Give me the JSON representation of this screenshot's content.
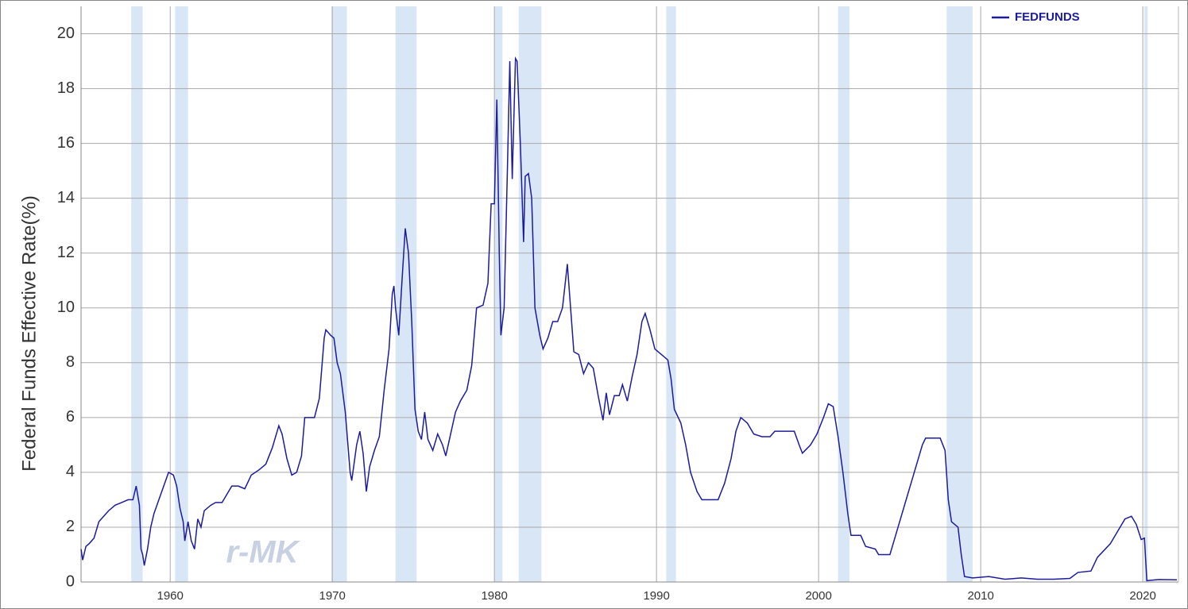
{
  "chart_data": {
    "type": "line",
    "y_label": "Federal Funds Effective Rate(%)",
    "watermark": "r-MK",
    "x": [
      1954.5,
      1954.6,
      1954.8,
      1955.0,
      1955.3,
      1955.6,
      1955.9,
      1956.2,
      1956.6,
      1957.0,
      1957.4,
      1957.7,
      1957.9,
      1958.1,
      1958.2,
      1958.3,
      1958.4,
      1958.6,
      1958.8,
      1959.0,
      1959.3,
      1959.6,
      1959.9,
      1960.2,
      1960.4,
      1960.6,
      1960.8,
      1960.9,
      1961.1,
      1961.3,
      1961.5,
      1961.7,
      1961.9,
      1962.1,
      1962.5,
      1962.8,
      1963.2,
      1963.5,
      1963.8,
      1964.2,
      1964.6,
      1965.0,
      1965.5,
      1965.9,
      1966.3,
      1966.7,
      1966.9,
      1967.2,
      1967.5,
      1967.8,
      1968.1,
      1968.3,
      1968.6,
      1968.9,
      1969.2,
      1969.5,
      1969.6,
      1969.9,
      1970.1,
      1970.3,
      1970.5,
      1970.8,
      1971.1,
      1971.2,
      1971.5,
      1971.7,
      1971.9,
      1972.1,
      1972.3,
      1972.6,
      1972.9,
      1973.2,
      1973.5,
      1973.7,
      1973.8,
      1973.9,
      1974.1,
      1974.3,
      1974.5,
      1974.7,
      1974.9,
      1975.1,
      1975.3,
      1975.5,
      1975.7,
      1975.9,
      1976.2,
      1976.5,
      1976.8,
      1977.0,
      1977.3,
      1977.6,
      1977.9,
      1978.3,
      1978.6,
      1978.9,
      1979.3,
      1979.6,
      1979.8,
      1980.0,
      1980.15,
      1980.3,
      1980.4,
      1980.6,
      1980.8,
      1980.95,
      1981.1,
      1981.3,
      1981.4,
      1981.6,
      1981.8,
      1981.9,
      1982.1,
      1982.3,
      1982.5,
      1982.8,
      1983.0,
      1983.3,
      1983.6,
      1983.9,
      1984.2,
      1984.5,
      1984.7,
      1984.9,
      1985.2,
      1985.5,
      1985.8,
      1986.1,
      1986.4,
      1986.7,
      1986.9,
      1987.1,
      1987.4,
      1987.7,
      1987.9,
      1988.2,
      1988.5,
      1988.8,
      1989.1,
      1989.3,
      1989.6,
      1989.9,
      1990.3,
      1990.7,
      1990.9,
      1991.1,
      1991.5,
      1991.8,
      1992.1,
      1992.5,
      1992.8,
      1993.3,
      1993.8,
      1994.2,
      1994.6,
      1994.9,
      1995.2,
      1995.6,
      1996.0,
      1996.5,
      1997.0,
      1997.3,
      1997.8,
      1998.5,
      1998.8,
      1999.0,
      1999.5,
      1999.9,
      2000.3,
      2000.6,
      2000.9,
      2001.2,
      2001.5,
      2001.8,
      2002.0,
      2002.6,
      2002.9,
      2003.5,
      2003.7,
      2004.4,
      2004.9,
      2005.5,
      2005.9,
      2006.4,
      2006.6,
      2007.5,
      2007.8,
      2008.0,
      2008.2,
      2008.6,
      2008.8,
      2009.0,
      2009.5,
      2010.5,
      2011.5,
      2012.5,
      2013.5,
      2014.5,
      2015.5,
      2016.0,
      2016.8,
      2017.2,
      2017.6,
      2018.0,
      2018.5,
      2018.9,
      2019.3,
      2019.6,
      2019.9,
      2020.1,
      2020.25,
      2021.0,
      2022.1
    ],
    "series": [
      {
        "name": "FEDFUNDS",
        "color": "#1c1c9c",
        "values": [
          1.2,
          0.8,
          1.3,
          1.4,
          1.6,
          2.2,
          2.4,
          2.6,
          2.8,
          2.9,
          3.0,
          3.0,
          3.5,
          2.8,
          1.2,
          1.0,
          0.6,
          1.2,
          2.0,
          2.5,
          3.0,
          3.5,
          4.0,
          3.9,
          3.5,
          2.7,
          2.2,
          1.5,
          2.2,
          1.5,
          1.2,
          2.3,
          2.0,
          2.6,
          2.8,
          2.9,
          2.9,
          3.2,
          3.5,
          3.5,
          3.4,
          3.9,
          4.1,
          4.3,
          4.9,
          5.7,
          5.4,
          4.5,
          3.9,
          4.0,
          4.6,
          6.0,
          6.0,
          6.0,
          6.7,
          8.9,
          9.2,
          9.0,
          8.9,
          8.0,
          7.6,
          6.2,
          4.0,
          3.7,
          5.0,
          5.5,
          4.7,
          3.3,
          4.2,
          4.8,
          5.3,
          7.0,
          8.5,
          10.5,
          10.8,
          10.0,
          9.0,
          11.0,
          12.9,
          12.0,
          9.5,
          6.3,
          5.5,
          5.2,
          6.2,
          5.2,
          4.8,
          5.4,
          5.0,
          4.6,
          5.4,
          6.2,
          6.6,
          7.0,
          7.9,
          10.0,
          10.1,
          10.9,
          13.8,
          13.8,
          17.6,
          12.0,
          9.0,
          10.0,
          15.0,
          19.0,
          14.7,
          19.1,
          19.0,
          16.0,
          12.4,
          14.8,
          14.9,
          14.0,
          10.0,
          9.0,
          8.5,
          8.9,
          9.5,
          9.5,
          10.0,
          11.6,
          10.0,
          8.4,
          8.3,
          7.6,
          8.0,
          7.8,
          6.8,
          5.9,
          6.9,
          6.1,
          6.8,
          6.8,
          7.2,
          6.6,
          7.5,
          8.3,
          9.5,
          9.8,
          9.2,
          8.5,
          8.3,
          8.1,
          7.4,
          6.3,
          5.8,
          5.0,
          4.0,
          3.3,
          3.0,
          3.0,
          3.0,
          3.6,
          4.5,
          5.5,
          6.0,
          5.8,
          5.4,
          5.3,
          5.3,
          5.5,
          5.5,
          5.5,
          5.0,
          4.7,
          5.0,
          5.4,
          6.0,
          6.5,
          6.4,
          5.3,
          4.0,
          2.5,
          1.7,
          1.7,
          1.3,
          1.2,
          1.0,
          1.0,
          2.0,
          3.2,
          4.0,
          5.0,
          5.25,
          5.25,
          4.8,
          3.0,
          2.2,
          2.0,
          1.0,
          0.2,
          0.15,
          0.2,
          0.1,
          0.15,
          0.1,
          0.1,
          0.13,
          0.35,
          0.4,
          0.9,
          1.15,
          1.4,
          1.9,
          2.3,
          2.4,
          2.1,
          1.55,
          1.6,
          0.05,
          0.09,
          0.08
        ]
      }
    ],
    "recessions": [
      [
        1957.6,
        1958.3
      ],
      [
        1960.3,
        1961.1
      ],
      [
        1969.95,
        1970.9
      ],
      [
        1973.9,
        1975.2
      ],
      [
        1980.0,
        1980.5
      ],
      [
        1981.5,
        1982.9
      ],
      [
        1990.6,
        1991.2
      ],
      [
        2001.2,
        2001.9
      ],
      [
        2007.9,
        2009.5
      ],
      [
        2020.1,
        2020.3
      ]
    ],
    "recession_color": "#d9e6f6",
    "xlim": [
      1954.5,
      2022.2
    ],
    "ylim": [
      0,
      21
    ],
    "xticks": [
      1960,
      1970,
      1980,
      1990,
      2000,
      2010,
      2020
    ],
    "yticks": [
      0,
      2,
      4,
      6,
      8,
      10,
      12,
      14,
      16,
      18,
      20
    ],
    "grid": true,
    "legend": "top-right"
  }
}
